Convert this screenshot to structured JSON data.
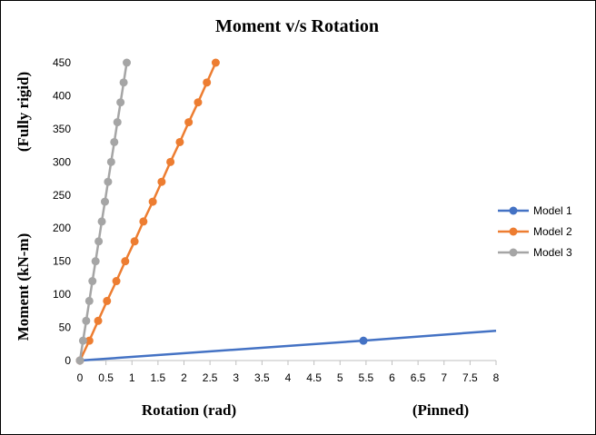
{
  "chart_data": {
    "type": "line",
    "title": "Moment v/s Rotation",
    "xlabel": "Rotation (rad)",
    "ylabel": "Moment (kN-m)",
    "x_annotation": "(Pinned)",
    "y_annotation": "(Fully rigid)",
    "xlim": [
      0,
      8
    ],
    "ylim": [
      0,
      450
    ],
    "xticks": [
      "0",
      "0.5",
      "1",
      "1.5",
      "2",
      "2.5",
      "3",
      "3.5",
      "4",
      "4.5",
      "5",
      "5.5",
      "6",
      "6.5",
      "7",
      "7.5",
      "8"
    ],
    "yticks": [
      "0",
      "50",
      "100",
      "150",
      "200",
      "250",
      "300",
      "350",
      "400",
      "450"
    ],
    "grid": false,
    "legend_position": "right",
    "series": [
      {
        "name": "Model 1",
        "color": "#4472C4",
        "points": [
          [
            0,
            0
          ],
          [
            5.45,
            30
          ],
          [
            8,
            45
          ]
        ],
        "markers": [
          [
            0,
            0
          ],
          [
            5.45,
            30
          ]
        ]
      },
      {
        "name": "Model 2",
        "color": "#ED7D31",
        "points": [
          [
            0,
            0
          ],
          [
            0.18,
            30
          ],
          [
            0.35,
            60
          ],
          [
            0.52,
            90
          ],
          [
            0.7,
            120
          ],
          [
            0.87,
            150
          ],
          [
            1.05,
            180
          ],
          [
            1.22,
            210
          ],
          [
            1.4,
            240
          ],
          [
            1.57,
            270
          ],
          [
            1.74,
            300
          ],
          [
            1.92,
            330
          ],
          [
            2.09,
            360
          ],
          [
            2.27,
            390
          ],
          [
            2.44,
            420
          ],
          [
            2.61,
            450
          ]
        ],
        "markers": [
          [
            0,
            0
          ],
          [
            0.18,
            30
          ],
          [
            0.35,
            60
          ],
          [
            0.52,
            90
          ],
          [
            0.7,
            120
          ],
          [
            0.87,
            150
          ],
          [
            1.05,
            180
          ],
          [
            1.22,
            210
          ],
          [
            1.4,
            240
          ],
          [
            1.57,
            270
          ],
          [
            1.74,
            300
          ],
          [
            1.92,
            330
          ],
          [
            2.09,
            360
          ],
          [
            2.27,
            390
          ],
          [
            2.44,
            420
          ],
          [
            2.61,
            450
          ]
        ]
      },
      {
        "name": "Model 3",
        "color": "#A5A5A5",
        "points": [
          [
            0,
            0
          ],
          [
            0.06,
            30
          ],
          [
            0.12,
            60
          ],
          [
            0.18,
            90
          ],
          [
            0.24,
            120
          ],
          [
            0.3,
            150
          ],
          [
            0.36,
            180
          ],
          [
            0.42,
            210
          ],
          [
            0.48,
            240
          ],
          [
            0.54,
            270
          ],
          [
            0.6,
            300
          ],
          [
            0.66,
            330
          ],
          [
            0.72,
            360
          ],
          [
            0.78,
            390
          ],
          [
            0.84,
            420
          ],
          [
            0.9,
            450
          ]
        ],
        "markers": [
          [
            0,
            0
          ],
          [
            0.06,
            30
          ],
          [
            0.12,
            60
          ],
          [
            0.18,
            90
          ],
          [
            0.24,
            120
          ],
          [
            0.3,
            150
          ],
          [
            0.36,
            180
          ],
          [
            0.42,
            210
          ],
          [
            0.48,
            240
          ],
          [
            0.54,
            270
          ],
          [
            0.6,
            300
          ],
          [
            0.66,
            330
          ],
          [
            0.72,
            360
          ],
          [
            0.78,
            390
          ],
          [
            0.84,
            420
          ],
          [
            0.9,
            450
          ]
        ]
      }
    ]
  }
}
